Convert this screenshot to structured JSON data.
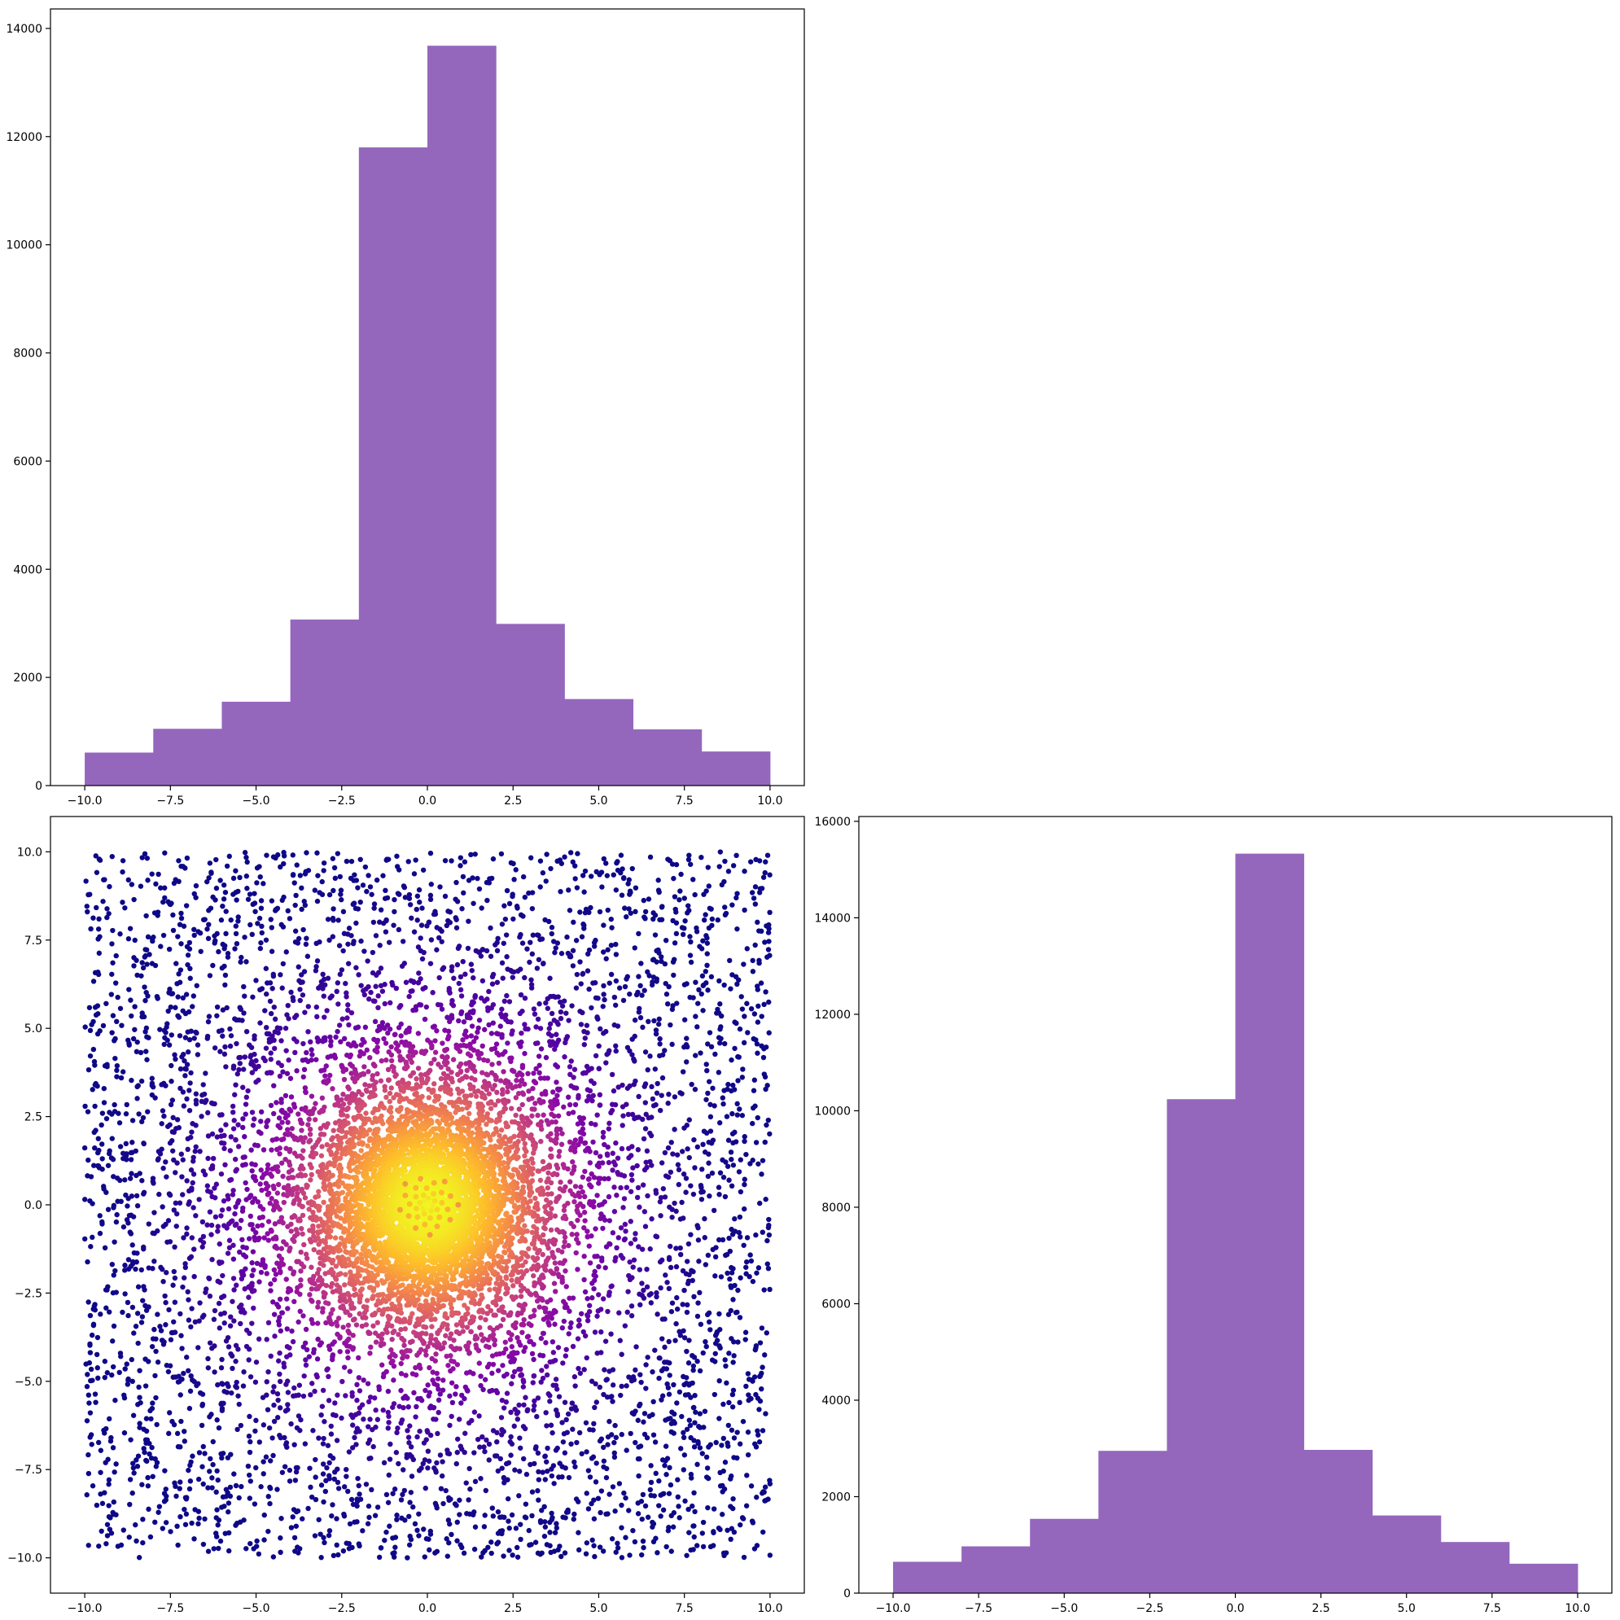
{
  "chart_data": [
    {
      "panel": "top-left",
      "type": "bar",
      "subtype": "histogram",
      "bin_edges": [
        -10,
        -8,
        -6,
        -4,
        -2,
        0,
        2,
        4,
        6,
        8,
        10
      ],
      "values": [
        610,
        1050,
        1550,
        3070,
        11800,
        13680,
        2990,
        1600,
        1040,
        630
      ],
      "xlim": [
        -11,
        11
      ],
      "ylim": [
        0,
        14360
      ],
      "xticks": [
        -10,
        -7.5,
        -5,
        -2.5,
        0,
        2.5,
        5,
        7.5,
        10
      ],
      "xtick_labels": [
        "−10.0",
        "−7.5",
        "−5.0",
        "−2.5",
        "0.0",
        "2.5",
        "5.0",
        "7.5",
        "10.0"
      ],
      "yticks": [
        0,
        2000,
        4000,
        6000,
        8000,
        10000,
        12000,
        14000
      ],
      "ytick_labels": [
        "0",
        "2000",
        "4000",
        "6000",
        "8000",
        "10000",
        "12000",
        "14000"
      ],
      "color": "#9467bd",
      "grid": false
    },
    {
      "panel": "bottom-left",
      "type": "scatter",
      "n_points": 10000,
      "x_range": [
        -10,
        10
      ],
      "y_range": [
        -10,
        10
      ],
      "color_by": "density, peaking at (0, 0)",
      "colormap": "plasma",
      "colormap_stops": [
        "#0d0887",
        "#5402a3",
        "#8b0aa5",
        "#b93289",
        "#db5c68",
        "#f48849",
        "#febd2a",
        "#f0f921"
      ],
      "xlim": [
        -11,
        11
      ],
      "ylim": [
        -11,
        11
      ],
      "xticks": [
        -10,
        -7.5,
        -5,
        -2.5,
        0,
        2.5,
        5,
        7.5,
        10
      ],
      "xtick_labels": [
        "−10.0",
        "−7.5",
        "−5.0",
        "−2.5",
        "0.0",
        "2.5",
        "5.0",
        "7.5",
        "10.0"
      ],
      "yticks": [
        -10,
        -7.5,
        -5,
        -2.5,
        0,
        2.5,
        5,
        7.5,
        10
      ],
      "ytick_labels": [
        "−10.0",
        "−7.5",
        "−5.0",
        "−2.5",
        "0.0",
        "2.5",
        "5.0",
        "7.5",
        "10.0"
      ],
      "grid": false
    },
    {
      "panel": "bottom-right",
      "type": "bar",
      "subtype": "histogram",
      "bin_edges": [
        -10,
        -8,
        -6,
        -4,
        -2,
        0,
        2,
        4,
        6,
        8,
        10
      ],
      "values": [
        650,
        970,
        1540,
        2950,
        10240,
        15330,
        2970,
        1610,
        1060,
        610
      ],
      "xlim": [
        -11,
        11
      ],
      "ylim": [
        0,
        16100
      ],
      "xticks": [
        -10,
        -7.5,
        -5,
        -2.5,
        0,
        2.5,
        5,
        7.5,
        10
      ],
      "xtick_labels": [
        "−10.0",
        "−7.5",
        "−5.0",
        "−2.5",
        "0.0",
        "2.5",
        "5.0",
        "7.5",
        "10.0"
      ],
      "yticks": [
        0,
        2000,
        4000,
        6000,
        8000,
        10000,
        12000,
        14000,
        16000
      ],
      "ytick_labels": [
        "0",
        "2000",
        "4000",
        "6000",
        "8000",
        "10000",
        "12000",
        "14000",
        "16000"
      ],
      "color": "#9467bd",
      "grid": false
    }
  ]
}
